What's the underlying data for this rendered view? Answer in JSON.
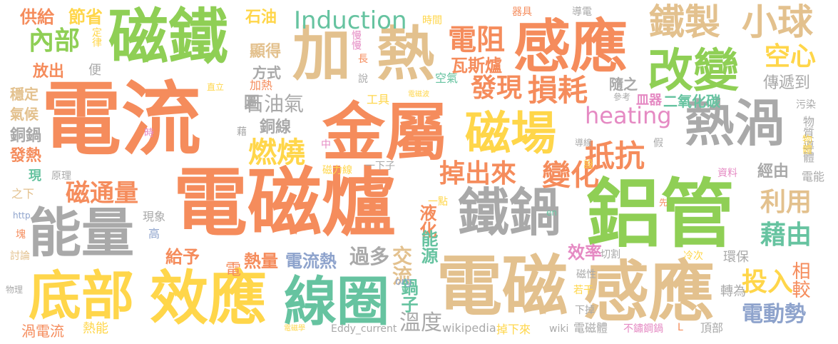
{
  "words": [
    {
      "text": "電流",
      "color": "orange"
    },
    {
      "text": "電磁爐",
      "color": "orange"
    },
    {
      "text": "金屬",
      "color": "orange"
    },
    {
      "text": "鋁管",
      "color": "green"
    },
    {
      "text": "電磁",
      "color": "tan"
    },
    {
      "text": "感應",
      "color": "tan"
    },
    {
      "text": "感應",
      "color": "orange"
    },
    {
      "text": "磁鐵",
      "color": "green"
    },
    {
      "text": "加",
      "color": "tan"
    },
    {
      "text": "熱",
      "color": "tan"
    },
    {
      "text": "效應",
      "color": "gold"
    },
    {
      "text": "底部",
      "color": "gold"
    },
    {
      "text": "線圈",
      "color": "teal"
    },
    {
      "text": "能量",
      "color": "gray"
    },
    {
      "text": "鐵鍋",
      "color": "gray"
    },
    {
      "text": "熱渦",
      "color": "gray"
    },
    {
      "text": "改變",
      "color": "green"
    },
    {
      "text": "磁場",
      "color": "gold"
    },
    {
      "text": "鐵製",
      "color": "tan"
    },
    {
      "text": "小球",
      "color": "tan"
    },
    {
      "text": "Induction",
      "color": "teal"
    },
    {
      "text": "heating",
      "color": "pink"
    },
    {
      "text": "電阻",
      "color": "orange"
    },
    {
      "text": "損耗",
      "color": "orange"
    },
    {
      "text": "抵抗",
      "color": "orange"
    },
    {
      "text": "變化",
      "color": "orange"
    },
    {
      "text": "掉出來",
      "color": "orange"
    },
    {
      "text": "燃燒",
      "color": "gold"
    },
    {
      "text": "發現",
      "color": "orange"
    },
    {
      "text": "瓦斯爐",
      "color": "orange"
    },
    {
      "text": "石油氣",
      "color": "gray"
    },
    {
      "text": "磁通量",
      "color": "orange"
    },
    {
      "text": "內部",
      "color": "green"
    },
    {
      "text": "空心",
      "color": "gold"
    },
    {
      "text": "利用",
      "color": "tan"
    },
    {
      "text": "藉由",
      "color": "teal"
    },
    {
      "text": "投入",
      "color": "gold"
    },
    {
      "text": "電動勢",
      "color": "blue"
    },
    {
      "text": "相較",
      "color": "orange"
    },
    {
      "text": "傳遞到",
      "color": "gray"
    },
    {
      "text": "溫度",
      "color": "gray"
    },
    {
      "text": "交流",
      "color": "tan"
    },
    {
      "text": "過多",
      "color": "gray"
    },
    {
      "text": "電流熱",
      "color": "blue"
    },
    {
      "text": "熱量",
      "color": "orange"
    },
    {
      "text": "給予",
      "color": "orange"
    },
    {
      "text": "效率",
      "color": "pink"
    },
    {
      "text": "鍋子",
      "color": "teal"
    },
    {
      "text": "液化",
      "color": "orange"
    },
    {
      "text": "能源",
      "color": "teal"
    },
    {
      "text": "供給",
      "color": "orange"
    },
    {
      "text": "節省",
      "color": "gold"
    },
    {
      "text": "石油",
      "color": "gold"
    },
    {
      "text": "放出",
      "color": "orange"
    },
    {
      "text": "穩定",
      "color": "tan"
    },
    {
      "text": "氣候",
      "color": "tan"
    },
    {
      "text": "銅鍋",
      "color": "gray"
    },
    {
      "text": "發熱",
      "color": "orange"
    },
    {
      "text": "顯得",
      "color": "tan"
    },
    {
      "text": "方式",
      "color": "gray"
    },
    {
      "text": "圖",
      "color": "gray"
    },
    {
      "text": "隨之",
      "color": "gray"
    },
    {
      "text": "銅線",
      "color": "gray"
    },
    {
      "text": "經由",
      "color": "gray"
    },
    {
      "text": "二氧化碳",
      "color": "teal"
    },
    {
      "text": "皿器",
      "color": "pink"
    },
    {
      "text": "渦電流",
      "color": "orange"
    },
    {
      "text": "熱能",
      "color": "gold"
    },
    {
      "text": "wikipedia",
      "color": "gray"
    },
    {
      "text": "wiki",
      "color": "gray"
    },
    {
      "text": "電磁體",
      "color": "gray"
    },
    {
      "text": "不鏽鋼鍋",
      "color": "pink"
    },
    {
      "text": "頂部",
      "color": "gray"
    },
    {
      "text": "Eddy_current",
      "color": "gray"
    },
    {
      "text": "掉下來",
      "color": "gold"
    },
    {
      "text": "轉為",
      "color": "gray"
    },
    {
      "text": "環保",
      "color": "gray"
    },
    {
      "text": "磁性",
      "color": "gray"
    },
    {
      "text": "電能",
      "color": "gray"
    },
    {
      "text": "導體",
      "color": "gray"
    },
    {
      "text": "物質",
      "color": "gray"
    },
    {
      "text": "物體",
      "color": "gold"
    },
    {
      "text": "污染",
      "color": "gray"
    },
    {
      "text": "資料",
      "color": "pink"
    },
    {
      "text": "加熱",
      "color": "orange"
    },
    {
      "text": "工具",
      "color": "gold"
    },
    {
      "text": "空氣",
      "color": "teal"
    },
    {
      "text": "時間",
      "color": "gold"
    },
    {
      "text": "器具",
      "color": "orange"
    },
    {
      "text": "導電",
      "color": "gray"
    },
    {
      "text": "慢慢",
      "color": "pink"
    },
    {
      "text": "原理",
      "color": "gray"
    },
    {
      "text": "現象",
      "color": "gray"
    },
    {
      "text": "http",
      "color": "blue"
    },
    {
      "text": "高",
      "color": "blue"
    },
    {
      "text": "電",
      "color": "orange"
    },
    {
      "text": "現",
      "color": "teal"
    },
    {
      "text": "之下",
      "color": "tan"
    },
    {
      "text": "塊",
      "color": "orange"
    },
    {
      "text": "討論",
      "color": "tan"
    },
    {
      "text": "物理",
      "color": "gray"
    },
    {
      "text": "便",
      "color": "gray"
    },
    {
      "text": "定律",
      "color": "gold"
    },
    {
      "text": "長",
      "color": "orange"
    },
    {
      "text": "說",
      "color": "gray"
    },
    {
      "text": "直立",
      "color": "gold"
    },
    {
      "text": "時",
      "color": "pink"
    },
    {
      "text": "藉",
      "color": "gray"
    },
    {
      "text": "中",
      "color": "pink"
    },
    {
      "text": "磁力線",
      "color": "gold"
    },
    {
      "text": "一下子",
      "color": "gray"
    },
    {
      "text": "一點",
      "color": "gold"
    },
    {
      "text": "en",
      "color": "teal"
    },
    {
      "text": "org",
      "color": "blue"
    },
    {
      "text": "參考",
      "color": "gray"
    },
    {
      "text": "電磁波",
      "color": "gold"
    },
    {
      "text": "導線",
      "color": "gray"
    },
    {
      "text": "假",
      "color": "gray"
    },
    {
      "text": "設",
      "color": "gold"
    },
    {
      "text": "先",
      "color": "orange"
    },
    {
      "text": "切割",
      "color": "gray"
    },
    {
      "text": "冷次",
      "color": "gold"
    },
    {
      "text": "若干",
      "color": "gold"
    },
    {
      "text": "下掉",
      "color": "gray"
    },
    {
      "text": "電磁學",
      "color": "gold"
    },
    {
      "text": "L",
      "color": "orange"
    }
  ]
}
